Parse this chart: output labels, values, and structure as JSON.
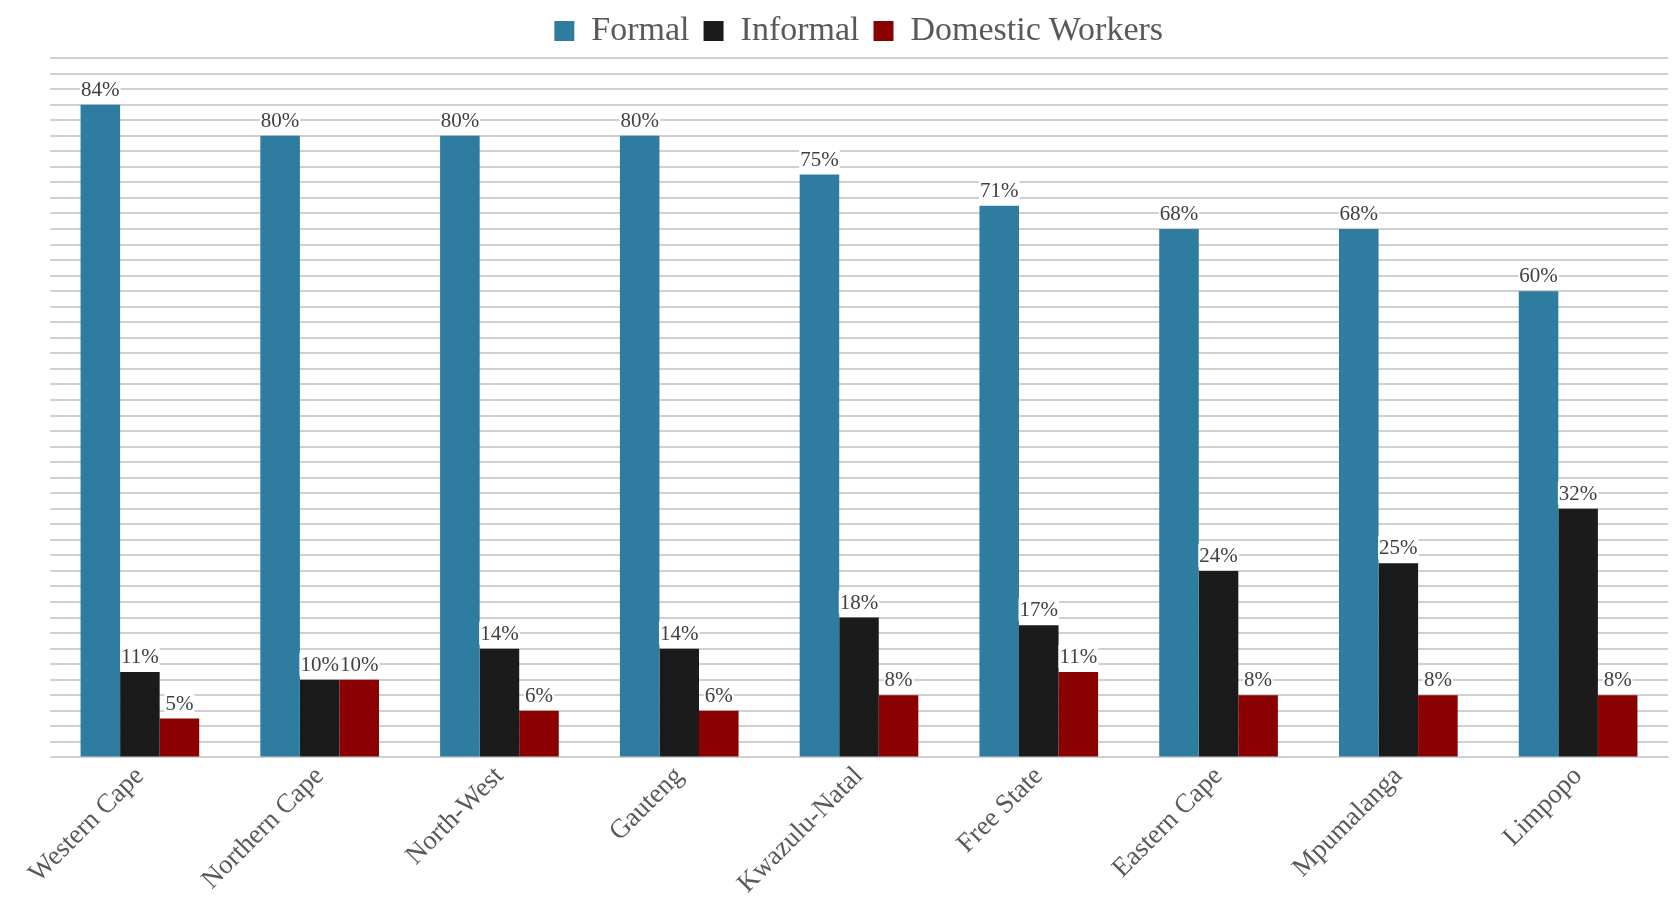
{
  "chart_data": {
    "type": "bar",
    "categories": [
      "Western Cape",
      "Northern Cape",
      "North-West",
      "Gauteng",
      "Kwazulu-Natal",
      "Free State",
      "Eastern Cape",
      "Mpumalanga",
      "Limpopo"
    ],
    "series": [
      {
        "name": "Formal",
        "color": "#2e7ca0",
        "values": [
          84,
          80,
          80,
          80,
          75,
          71,
          68,
          68,
          60
        ],
        "value_labels": [
          "84%",
          "80%",
          "80%",
          "80%",
          "75%",
          "71%",
          "68%",
          "68%",
          "60%"
        ]
      },
      {
        "name": "Informal",
        "color": "#1b1b1b",
        "values": [
          11,
          10,
          14,
          14,
          18,
          17,
          24,
          25,
          32
        ],
        "value_labels": [
          "11%",
          "10%",
          "14%",
          "14%",
          "18%",
          "17%",
          "24%",
          "25%",
          "32%"
        ]
      },
      {
        "name": "Domestic Workers",
        "color": "#8b0000",
        "values": [
          5,
          10,
          6,
          6,
          8,
          11,
          8,
          8,
          8
        ],
        "value_labels": [
          "5%",
          "10%",
          "6%",
          "6%",
          "8%",
          "11%",
          "8%",
          "8%",
          "8%"
        ]
      }
    ],
    "ylim": [
      0,
      90
    ],
    "yticks": [
      {
        "value": 0,
        "label": null
      },
      {
        "value": 2,
        "label": null
      },
      {
        "value": 4,
        "label": null
      },
      {
        "value": 6,
        "label": null
      },
      {
        "value": 8,
        "label": null
      },
      {
        "value": 10,
        "label": null
      },
      {
        "value": 12,
        "label": null
      },
      {
        "value": 14,
        "label": null
      },
      {
        "value": 16,
        "label": null
      },
      {
        "value": 18,
        "label": null
      },
      {
        "value": 20,
        "label": null
      },
      {
        "value": 22,
        "label": null
      },
      {
        "value": 24,
        "label": null
      },
      {
        "value": 26,
        "label": null
      },
      {
        "value": 28,
        "label": null
      },
      {
        "value": 30,
        "label": null
      },
      {
        "value": 32,
        "label": null
      },
      {
        "value": 34,
        "label": null
      },
      {
        "value": 36,
        "label": null
      },
      {
        "value": 38,
        "label": null
      },
      {
        "value": 40,
        "label": null
      },
      {
        "value": 42,
        "label": null
      },
      {
        "value": 44,
        "label": null
      },
      {
        "value": 46,
        "label": null
      },
      {
        "value": 48,
        "label": null
      },
      {
        "value": 50,
        "label": null
      },
      {
        "value": 52,
        "label": null
      },
      {
        "value": 54,
        "label": null
      },
      {
        "value": 56,
        "label": null
      },
      {
        "value": 58,
        "label": null
      },
      {
        "value": 60,
        "label": null
      },
      {
        "value": 62,
        "label": null
      },
      {
        "value": 64,
        "label": null
      },
      {
        "value": 66,
        "label": null
      },
      {
        "value": 68,
        "label": null
      },
      {
        "value": 70,
        "label": null
      },
      {
        "value": 72,
        "label": null
      },
      {
        "value": 74,
        "label": null
      },
      {
        "value": 76,
        "label": null
      },
      {
        "value": 78,
        "label": null
      },
      {
        "value": 80,
        "label": null
      },
      {
        "value": 82,
        "label": null
      },
      {
        "value": 84,
        "label": null
      },
      {
        "value": 86,
        "label": null
      },
      {
        "value": 88,
        "label": null
      },
      {
        "value": 90,
        "label": null
      }
    ],
    "tick_labels": "x",
    "grid": "y",
    "legend": "top"
  }
}
